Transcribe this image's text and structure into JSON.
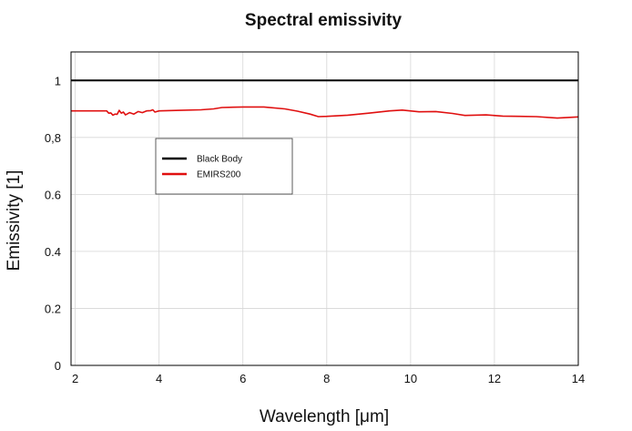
{
  "chart_data": {
    "type": "line",
    "title": "Spectral emissivity",
    "xlabel": "Wavelength [μm]",
    "ylabel": "Emissivity [1]",
    "xlim": [
      1.9,
      14
    ],
    "ylim": [
      0,
      1.1
    ],
    "xticks": [
      2,
      4,
      6,
      8,
      10,
      12,
      14
    ],
    "xtick_labels": [
      "2",
      "4",
      "6",
      "8",
      "10",
      "12",
      "14"
    ],
    "yticks": [
      0,
      0.2,
      0.4,
      0.6,
      0.8,
      1
    ],
    "ytick_labels": [
      "0",
      "0.2",
      "0.4",
      "0.6",
      "0,8",
      "1"
    ],
    "grid": true,
    "legend_position": "upper-left",
    "series": [
      {
        "name": "Black Body",
        "color": "#000000",
        "x": [
          1.9,
          14
        ],
        "y": [
          1.0,
          1.0
        ]
      },
      {
        "name": "EMIRS200",
        "color": "#e01010",
        "x": [
          1.9,
          2.5,
          2.75,
          2.8,
          2.85,
          2.9,
          2.95,
          3.0,
          3.05,
          3.1,
          3.15,
          3.2,
          3.3,
          3.4,
          3.5,
          3.6,
          3.7,
          3.8,
          3.85,
          3.9,
          4.0,
          4.5,
          5.0,
          5.3,
          5.5,
          6.0,
          6.5,
          7.0,
          7.3,
          7.6,
          7.8,
          8.0,
          8.5,
          9.0,
          9.5,
          9.8,
          10.2,
          10.6,
          11.0,
          11.3,
          11.8,
          12.2,
          12.6,
          13.0,
          13.5,
          14.0
        ],
        "y": [
          0.893,
          0.893,
          0.893,
          0.885,
          0.886,
          0.878,
          0.882,
          0.881,
          0.895,
          0.885,
          0.889,
          0.879,
          0.887,
          0.882,
          0.891,
          0.887,
          0.893,
          0.894,
          0.897,
          0.889,
          0.893,
          0.895,
          0.897,
          0.9,
          0.905,
          0.907,
          0.907,
          0.9,
          0.892,
          0.882,
          0.873,
          0.874,
          0.878,
          0.885,
          0.893,
          0.896,
          0.89,
          0.891,
          0.884,
          0.877,
          0.879,
          0.875,
          0.874,
          0.873,
          0.868,
          0.872
        ]
      }
    ]
  }
}
